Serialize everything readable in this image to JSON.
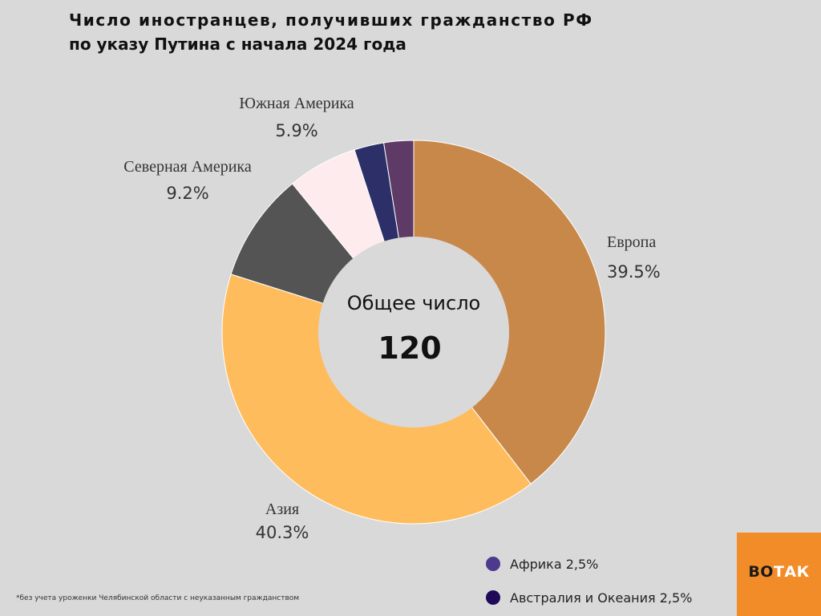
{
  "title": {
    "line1": "Число иностранцев, получивших гражданство РФ",
    "line2": "по указу Путина с начала 2024 года"
  },
  "center": {
    "label": "Общее число",
    "value": "120"
  },
  "chart_data": {
    "type": "pie",
    "title": "Число иностранцев, получивших гражданство РФ по указу Путина с начала 2024 года",
    "total": 120,
    "slices": [
      {
        "name": "Европа",
        "pct_label": "39.5%",
        "value": 39.5,
        "color": "#c8884a"
      },
      {
        "name": "Азия",
        "pct_label": "40.3%",
        "value": 40.3,
        "color": "#ffbc5c"
      },
      {
        "name": "Северная Америка",
        "pct_label": "9.2%",
        "value": 9.2,
        "color": "#545454"
      },
      {
        "name": "Южная Америка",
        "pct_label": "5.9%",
        "value": 5.9,
        "color": "#fdebee"
      },
      {
        "name": "Австралия и Океания",
        "pct_label": "2,5%",
        "value": 2.5,
        "color": "#2d3068"
      },
      {
        "name": "Африка",
        "pct_label": "2,5%",
        "value": 2.5,
        "color": "#5e3a66"
      }
    ]
  },
  "legend": [
    {
      "label": "Африка 2,5%",
      "color": "#4e3a8c"
    },
    {
      "label": "Австралия и Океания 2,5%",
      "color": "#1f0a5a"
    }
  ],
  "footnote": "*без учета уроженки Челябинской области с неуказанным гражданством",
  "brand": {
    "part1": "ВО",
    "part2": "ТАК"
  }
}
